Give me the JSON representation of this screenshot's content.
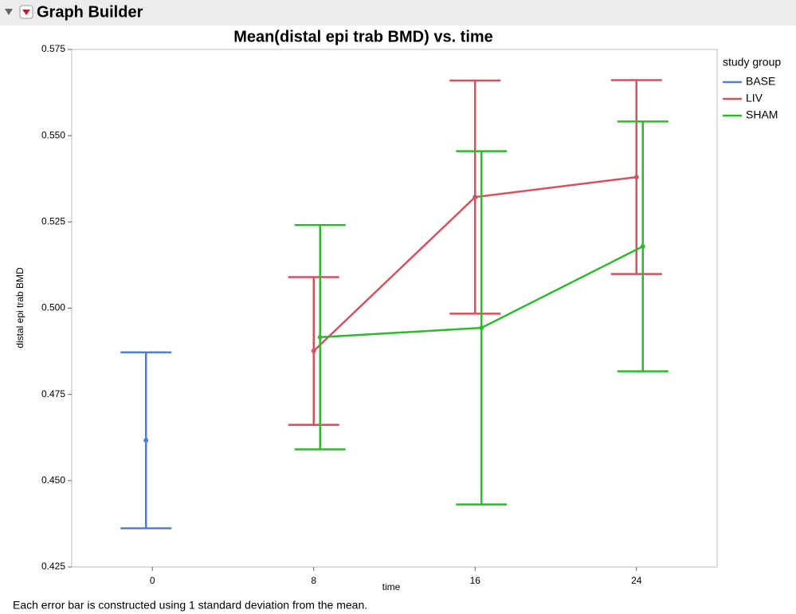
{
  "window_title": "Graph Builder",
  "footnote": "Each error bar is constructed using 1 standard deviation from the mean.",
  "chart_data": {
    "type": "line-errorbar",
    "title": "Mean(distal epi trab BMD) vs. time",
    "x_label": "time",
    "y_label": "distal epi trab BMD",
    "legend_title": "study group",
    "legend": "right",
    "categories": [
      "0",
      "8",
      "16",
      "24"
    ],
    "ylim": [
      0.425,
      0.575
    ],
    "yticks": [
      0.425,
      {
        "value": 0.45,
        "label": "0.450"
      },
      0.475,
      {
        "value": 0.5,
        "label": "0.500"
      },
      0.525,
      {
        "value": 0.55,
        "label": "0.550"
      },
      0.575
    ],
    "series": [
      {
        "name": "BASE",
        "color": "#4a7fd4",
        "values": [
          0.4617,
          null,
          null,
          null
        ],
        "errors": [
          0.0255,
          null,
          null,
          null
        ]
      },
      {
        "name": "LIV",
        "color": "#d4515f",
        "values": [
          null,
          0.4876,
          0.5322,
          0.538
        ],
        "errors": [
          null,
          0.0214,
          0.0338,
          0.0281
        ]
      },
      {
        "name": "SHAM",
        "color": "#2eb82e",
        "values": [
          null,
          0.4916,
          0.4943,
          0.5179
        ],
        "errors": [
          null,
          0.0325,
          0.0512,
          0.0362
        ]
      }
    ]
  }
}
